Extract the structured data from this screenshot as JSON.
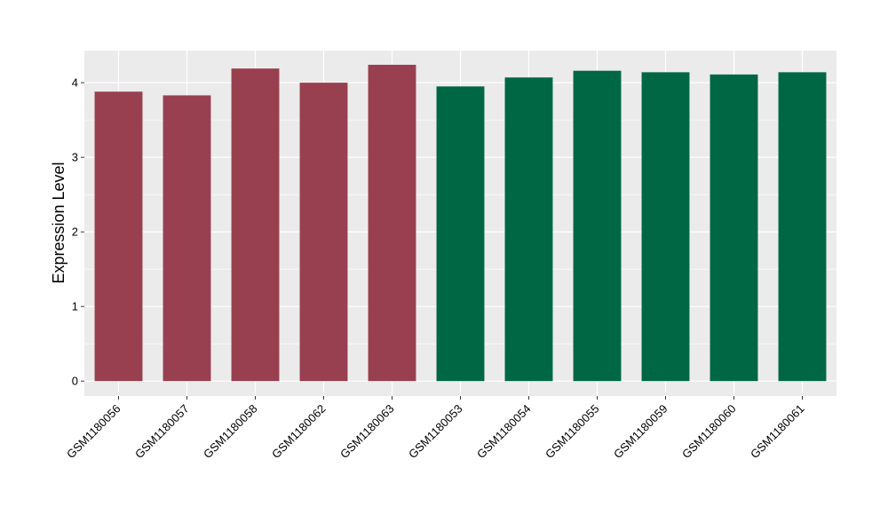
{
  "chart_data": {
    "type": "bar",
    "title": "",
    "xlabel": "",
    "ylabel": "Expression Level",
    "ylim": [
      -0.2,
      4.43
    ],
    "yticks": [
      0,
      1,
      2,
      3,
      4
    ],
    "grid": true,
    "legend": "none",
    "categories": [
      "GSM1180056",
      "GSM1180057",
      "GSM1180058",
      "GSM1180062",
      "GSM1180063",
      "GSM1180053",
      "GSM1180054",
      "GSM1180055",
      "GSM1180059",
      "GSM1180060",
      "GSM1180061"
    ],
    "values": [
      3.88,
      3.83,
      4.19,
      4.0,
      4.24,
      3.95,
      4.07,
      4.16,
      4.14,
      4.11,
      4.14
    ],
    "group": [
      "A",
      "A",
      "A",
      "A",
      "A",
      "B",
      "B",
      "B",
      "B",
      "B",
      "B"
    ],
    "group_colors": {
      "A": "#98404F",
      "B": "#006744"
    },
    "panel_background": "#EBEBEB",
    "grid_color": "#FFFFFF"
  }
}
